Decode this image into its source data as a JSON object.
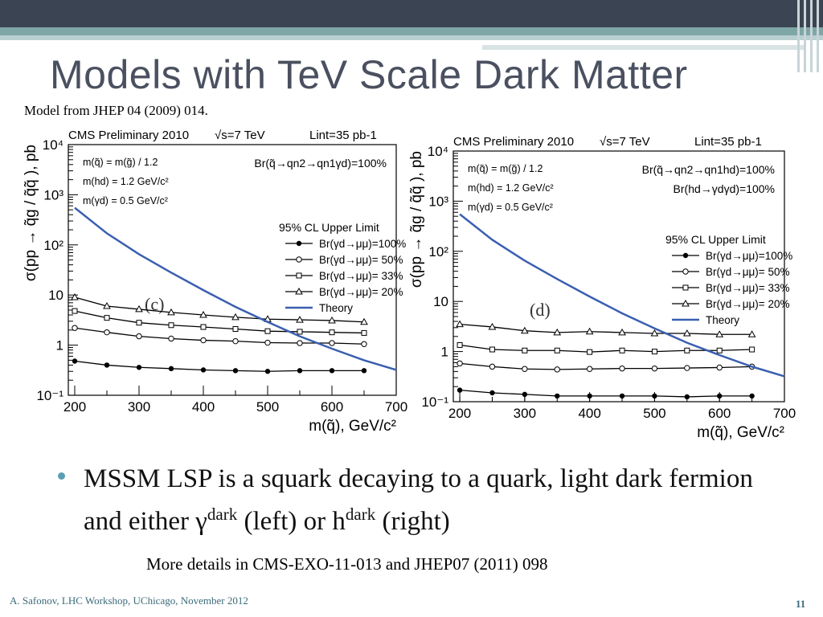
{
  "slide": {
    "title": "Models with TeV Scale Dark Matter",
    "subtitle": "Model from JHEP 04 (2009) 014.",
    "bullet_pre": "MSSM LSP is a squark decaying to a quark, light dark fermion and either ",
    "bullet_gamma": "γ",
    "bullet_sup1": "dark",
    "bullet_mid": " (left) or h",
    "bullet_sup2": "dark",
    "bullet_post": " (right)",
    "details": "More details in CMS-EXO-11-013 and JHEP07 (2011) 098",
    "footer_left": "A. Safonov, LHC Workshop, UChicago, November 2012",
    "page_number": "11"
  },
  "colors": {
    "theory_line": "#3a5fb0",
    "accent": "#5aa0b3",
    "title": "#4a5060"
  },
  "chart_data": [
    {
      "type": "line",
      "panel_label": "(c)",
      "header": {
        "left": "CMS Preliminary 2010",
        "energy": "√s=7 TeV",
        "lumi": "Lint=35 pb-1"
      },
      "xlabel": "m(q̃), GeV/c²",
      "ylabel": "σ(pp → q̃g / q̃q̃ ), pb",
      "log_y": true,
      "xlim": [
        190,
        700
      ],
      "ylim": [
        0.1,
        10000
      ],
      "x_ticks": [
        200,
        300,
        400,
        500,
        600,
        700
      ],
      "y_ticks": [
        {
          "v": 0.1,
          "label": "10⁻¹"
        },
        {
          "v": 1,
          "label": "1"
        },
        {
          "v": 10,
          "label": "10"
        },
        {
          "v": 100,
          "label": "10²"
        },
        {
          "v": 1000,
          "label": "10³"
        },
        {
          "v": 10000,
          "label": "10⁴"
        }
      ],
      "params": [
        "m(q̃) = m(g̃) / 1.2",
        "m(hd) = 1.2 GeV/c²",
        "m(γd) = 0.5 GeV/c²"
      ],
      "br_label": "Br(q̃→qn2→qn1γd)=100%",
      "legend_title": "95% CL Upper Limit",
      "x": [
        200,
        250,
        300,
        350,
        400,
        450,
        500,
        550,
        600,
        650
      ],
      "series": [
        {
          "name": "Br(γd→μμ)=100%",
          "marker": "filled-circle",
          "values": [
            0.48,
            0.4,
            0.36,
            0.34,
            0.32,
            0.31,
            0.3,
            0.31,
            0.31,
            0.31
          ]
        },
        {
          "name": "Br(γd→μμ)= 50%",
          "marker": "open-circle",
          "values": [
            2.2,
            1.8,
            1.5,
            1.35,
            1.25,
            1.2,
            1.12,
            1.1,
            1.1,
            1.05
          ]
        },
        {
          "name": "Br(γd→μμ)= 33%",
          "marker": "open-square",
          "values": [
            4.8,
            3.5,
            2.8,
            2.5,
            2.3,
            2.1,
            1.9,
            1.85,
            1.8,
            1.75
          ]
        },
        {
          "name": "Br(γd→μμ)= 20%",
          "marker": "open-triangle",
          "values": [
            9.0,
            6.0,
            5.2,
            4.5,
            4.0,
            3.6,
            3.3,
            3.2,
            3.1,
            2.9
          ]
        }
      ],
      "theory": {
        "name": "Theory",
        "x": [
          200,
          250,
          300,
          350,
          400,
          450,
          500,
          550,
          600,
          650,
          700
        ],
        "values": [
          550,
          170,
          65,
          28,
          12.5,
          5.8,
          2.9,
          1.5,
          0.85,
          0.5,
          0.32
        ]
      }
    },
    {
      "type": "line",
      "panel_label": "(d)",
      "header": {
        "left": "CMS Preliminary 2010",
        "energy": "√s=7 TeV",
        "lumi": "Lint=35 pb-1"
      },
      "xlabel": "m(q̃), GeV/c²",
      "ylabel": "σ(pp → q̃g / q̃q̃ ), pb",
      "log_y": true,
      "xlim": [
        190,
        700
      ],
      "ylim": [
        0.1,
        10000
      ],
      "x_ticks": [
        200,
        300,
        400,
        500,
        600,
        700
      ],
      "y_ticks": [
        {
          "v": 0.1,
          "label": "10⁻¹"
        },
        {
          "v": 1,
          "label": "1"
        },
        {
          "v": 10,
          "label": "10"
        },
        {
          "v": 100,
          "label": "10²"
        },
        {
          "v": 1000,
          "label": "10³"
        },
        {
          "v": 10000,
          "label": "10⁴"
        }
      ],
      "params": [
        "m(q̃) = m(g̃) / 1.2",
        "m(hd) = 1.2 GeV/c²",
        "m(γd) = 0.5 GeV/c²"
      ],
      "br_label": "Br(q̃→qn2→qn1hd)=100%",
      "br_label2": "Br(hd→γdγd)=100%",
      "legend_title": "95% CL Upper Limit",
      "x": [
        200,
        250,
        300,
        350,
        400,
        450,
        500,
        550,
        600,
        650
      ],
      "series": [
        {
          "name": "Br(γd→μμ)=100%",
          "marker": "filled-circle",
          "values": [
            0.17,
            0.15,
            0.14,
            0.13,
            0.13,
            0.13,
            0.13,
            0.125,
            0.13,
            0.13
          ]
        },
        {
          "name": "Br(γd→μμ)= 50%",
          "marker": "open-circle",
          "values": [
            0.58,
            0.5,
            0.45,
            0.44,
            0.45,
            0.46,
            0.46,
            0.47,
            0.48,
            0.5
          ]
        },
        {
          "name": "Br(γd→μμ)= 33%",
          "marker": "open-square",
          "values": [
            1.35,
            1.1,
            1.05,
            1.05,
            0.98,
            1.05,
            1.0,
            1.05,
            1.05,
            1.1
          ]
        },
        {
          "name": "Br(γd→μμ)= 20%",
          "marker": "open-triangle",
          "values": [
            3.5,
            3.1,
            2.6,
            2.4,
            2.5,
            2.4,
            2.3,
            2.3,
            2.2,
            2.2
          ]
        }
      ],
      "theory": {
        "name": "Theory",
        "x": [
          200,
          250,
          300,
          350,
          400,
          450,
          500,
          550,
          600,
          650,
          700
        ],
        "values": [
          550,
          170,
          65,
          28,
          12.5,
          5.8,
          2.9,
          1.5,
          0.85,
          0.5,
          0.32
        ]
      }
    }
  ]
}
